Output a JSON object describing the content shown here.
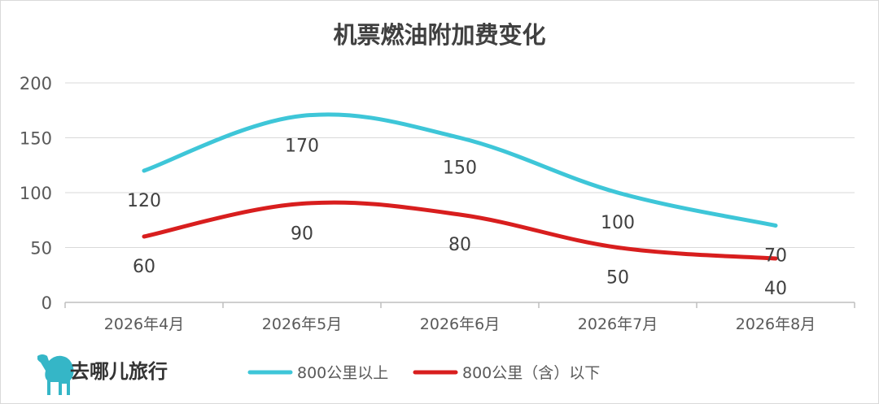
{
  "brand": {
    "name": "去哪儿旅行"
  },
  "colors": {
    "series_long": "#3ec6d8",
    "series_short": "#d81e1e",
    "grid": "#d9d9d9",
    "text": "#595959",
    "brand_icon": "#35b6c7"
  },
  "icons": {
    "brand_logo": "camel-icon"
  },
  "chart_data": {
    "type": "line",
    "title": "机票燃油附加费变化",
    "xlabel": "",
    "ylabel": "",
    "categories": [
      "2026年4月",
      "2026年5月",
      "2026年6月",
      "2026年7月",
      "2026年8月"
    ],
    "ylim": [
      0,
      200
    ],
    "yticks": [
      "0",
      "50",
      "100",
      "150",
      "200"
    ],
    "grid": true,
    "legend_position": "bottom",
    "series": [
      {
        "name": "800公里以上",
        "values": [
          120,
          170,
          150,
          100,
          70
        ],
        "labels": [
          "120",
          "170",
          "150",
          "100",
          "70"
        ]
      },
      {
        "name": "800公里（含）以下",
        "values": [
          60,
          90,
          80,
          50,
          40
        ],
        "labels": [
          "60",
          "90",
          "80",
          "50",
          "40"
        ]
      }
    ]
  }
}
